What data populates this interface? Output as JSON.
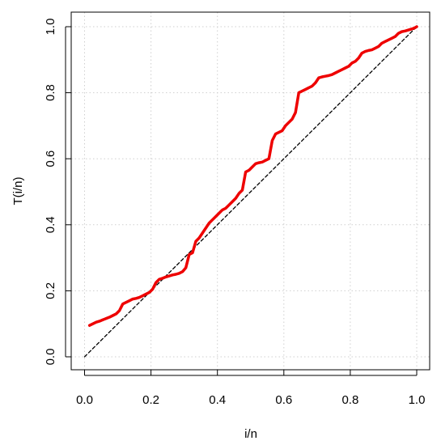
{
  "chart_data": {
    "type": "line",
    "title": "",
    "xlabel": "i/n",
    "ylabel": "T(i/n)",
    "xlim": [
      0,
      1
    ],
    "ylim": [
      0,
      1
    ],
    "xticks": [
      "0.0",
      "0.2",
      "0.4",
      "0.6",
      "0.8",
      "1.0"
    ],
    "yticks": [
      "0.0",
      "0.2",
      "0.4",
      "0.6",
      "0.8",
      "1.0"
    ],
    "grid": true,
    "series": [
      {
        "color": "#ee0000",
        "style": "solid",
        "x": [
          0.015,
          0.025,
          0.035,
          0.045,
          0.055,
          0.065,
          0.075,
          0.085,
          0.095,
          0.105,
          0.115,
          0.125,
          0.135,
          0.145,
          0.155,
          0.165,
          0.175,
          0.185,
          0.195,
          0.205,
          0.215,
          0.225,
          0.235,
          0.245,
          0.255,
          0.265,
          0.275,
          0.285,
          0.295,
          0.305,
          0.315,
          0.325,
          0.335,
          0.345,
          0.355,
          0.365,
          0.375,
          0.385,
          0.395,
          0.405,
          0.415,
          0.425,
          0.435,
          0.445,
          0.455,
          0.465,
          0.475,
          0.485,
          0.495,
          0.505,
          0.515,
          0.525,
          0.535,
          0.545,
          0.555,
          0.565,
          0.575,
          0.585,
          0.595,
          0.605,
          0.615,
          0.625,
          0.635,
          0.645,
          0.655,
          0.665,
          0.675,
          0.685,
          0.695,
          0.705,
          0.715,
          0.725,
          0.735,
          0.745,
          0.755,
          0.765,
          0.775,
          0.785,
          0.795,
          0.805,
          0.815,
          0.825,
          0.835,
          0.845,
          0.855,
          0.865,
          0.875,
          0.885,
          0.895,
          0.905,
          0.915,
          0.925,
          0.935,
          0.945,
          0.955,
          0.965,
          0.975,
          0.985,
          0.995,
          1.0
        ],
        "y": [
          0.095,
          0.1,
          0.105,
          0.108,
          0.112,
          0.116,
          0.12,
          0.125,
          0.13,
          0.14,
          0.16,
          0.165,
          0.17,
          0.175,
          0.177,
          0.18,
          0.185,
          0.19,
          0.195,
          0.205,
          0.225,
          0.235,
          0.238,
          0.242,
          0.245,
          0.248,
          0.25,
          0.253,
          0.258,
          0.27,
          0.31,
          0.315,
          0.35,
          0.36,
          0.375,
          0.39,
          0.405,
          0.415,
          0.425,
          0.435,
          0.445,
          0.45,
          0.46,
          0.47,
          0.48,
          0.495,
          0.505,
          0.56,
          0.565,
          0.575,
          0.585,
          0.588,
          0.59,
          0.595,
          0.6,
          0.655,
          0.675,
          0.68,
          0.685,
          0.7,
          0.71,
          0.72,
          0.74,
          0.8,
          0.805,
          0.81,
          0.815,
          0.82,
          0.83,
          0.845,
          0.848,
          0.85,
          0.852,
          0.855,
          0.86,
          0.865,
          0.87,
          0.875,
          0.88,
          0.89,
          0.895,
          0.905,
          0.92,
          0.925,
          0.928,
          0.93,
          0.935,
          0.94,
          0.95,
          0.955,
          0.96,
          0.965,
          0.97,
          0.98,
          0.985,
          0.987,
          0.99,
          0.993,
          0.997,
          1.0
        ]
      },
      {
        "color": "#000000",
        "style": "dashed",
        "x": [
          0,
          1
        ],
        "y": [
          0,
          1
        ]
      }
    ]
  }
}
